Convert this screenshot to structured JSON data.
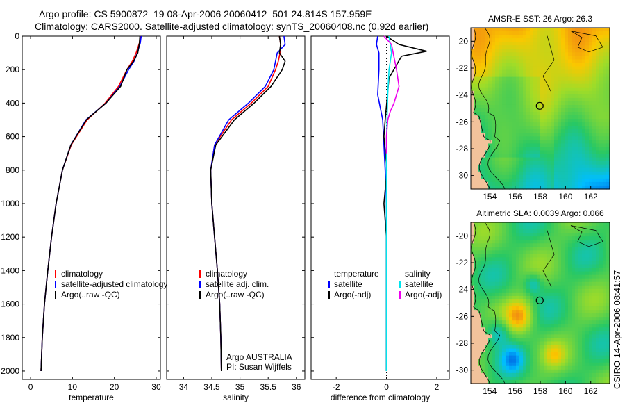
{
  "header": {
    "line1": "Argo profile: CS 5900872_19 08-Apr-2006 20060412_501 24.814S 157.959E",
    "line2": "Climatology: CARS2000. Satellite-adjusted climatology: synTS_20060408.nc (0.92d earlier)"
  },
  "side_label": "CSIRO 14-Apr-2006 08:41:57",
  "colors": {
    "climatology": "#ff0000",
    "satellite": "#0000ff",
    "argo": "#000000",
    "sal_satellite": "#00e5ee",
    "sal_argo": "#ee00ee",
    "land": "#f2c29b"
  },
  "chart_data": [
    {
      "id": "temperature",
      "type": "line",
      "xlabel": "temperature",
      "ylabel": "",
      "xlim": [
        -2,
        31
      ],
      "ylim": [
        2050,
        0
      ],
      "y_reversed": true,
      "xticks": [
        0,
        10,
        20,
        30
      ],
      "yticks": [
        0,
        200,
        400,
        600,
        800,
        1000,
        1200,
        1400,
        1600,
        1800,
        2000
      ],
      "legend": [
        "climatology",
        "satellite-adjusted climatology",
        "Argo(..raw -QC)"
      ],
      "legend_placement": "lower-right",
      "series": [
        {
          "name": "climatology",
          "color": "#ff0000",
          "x": [
            26.2,
            26.0,
            25.2,
            24.3,
            23.0,
            21.0,
            17.8,
            13.5,
            9.7,
            7.6,
            6.1,
            5.0,
            4.1,
            3.3,
            2.8,
            2.5
          ],
          "y": [
            0,
            40,
            100,
            150,
            200,
            300,
            400,
            500,
            650,
            800,
            1000,
            1200,
            1400,
            1600,
            1800,
            2000
          ]
        },
        {
          "name": "satellite-adjusted climatology",
          "color": "#0000ff",
          "x": [
            26.4,
            26.2,
            25.5,
            24.7,
            23.4,
            21.3,
            18.0,
            13.2,
            9.6,
            7.6,
            6.1,
            5.0,
            4.1,
            3.3,
            2.8,
            2.5
          ],
          "y": [
            0,
            40,
            100,
            150,
            200,
            300,
            400,
            500,
            650,
            800,
            1000,
            1200,
            1400,
            1600,
            1800,
            2000
          ]
        },
        {
          "name": "Argo(..raw -QC)",
          "color": "#000000",
          "x": [
            26.1,
            26.0,
            25.6,
            24.6,
            23.0,
            21.5,
            18.0,
            13.3,
            9.6,
            7.6,
            6.1,
            5.0,
            4.1,
            3.3,
            2.8,
            2.5
          ],
          "y": [
            0,
            40,
            100,
            150,
            200,
            300,
            400,
            500,
            650,
            800,
            1000,
            1200,
            1400,
            1600,
            1800,
            2000
          ]
        }
      ]
    },
    {
      "id": "salinity",
      "type": "line",
      "xlabel": "salinity",
      "xlim": [
        33.7,
        36.15
      ],
      "ylim": [
        2050,
        0
      ],
      "y_reversed": true,
      "xticks": [
        34,
        34.5,
        35,
        35.5,
        36
      ],
      "legend": [
        "climatology",
        "satellite adj. clim.",
        "Argo(..raw -QC)"
      ],
      "legend_placement": "lower-right",
      "annotation": [
        "Argo AUSTRALIA",
        "PI: Susan Wijffels"
      ],
      "series": [
        {
          "name": "climatology",
          "color": "#ff0000",
          "x": [
            35.7,
            35.72,
            35.71,
            35.68,
            35.63,
            35.5,
            35.2,
            34.85,
            34.55,
            34.48,
            34.5,
            34.55,
            34.6,
            34.64,
            34.66,
            34.67
          ],
          "y": [
            0,
            50,
            100,
            150,
            200,
            300,
            400,
            500,
            650,
            800,
            1000,
            1200,
            1400,
            1600,
            1800,
            2000
          ]
        },
        {
          "name": "satellite adj. clim.",
          "color": "#0000ff",
          "x": [
            35.78,
            35.8,
            35.66,
            35.63,
            35.6,
            35.45,
            35.15,
            34.8,
            34.55,
            34.48,
            34.5,
            34.55,
            34.6,
            34.64,
            34.66,
            34.67
          ],
          "y": [
            0,
            50,
            100,
            150,
            200,
            300,
            400,
            500,
            650,
            800,
            1000,
            1200,
            1400,
            1600,
            1800,
            2000
          ]
        },
        {
          "name": "Argo(..raw -QC)",
          "color": "#000000",
          "x": [
            35.7,
            35.72,
            35.7,
            35.8,
            35.75,
            35.55,
            35.25,
            34.9,
            34.57,
            34.48,
            34.5,
            34.55,
            34.6,
            34.64,
            34.66,
            34.67
          ],
          "y": [
            0,
            50,
            100,
            150,
            200,
            300,
            400,
            500,
            650,
            800,
            1000,
            1200,
            1400,
            1600,
            1800,
            2000
          ]
        }
      ]
    },
    {
      "id": "difference",
      "type": "line",
      "xlabel": "difference from climatology",
      "xlim": [
        -3.0,
        2.5
      ],
      "ylim": [
        2050,
        0
      ],
      "y_reversed": true,
      "xticks": [
        -2,
        0,
        2
      ],
      "legend_temperature": [
        "temperature",
        "satellite",
        "Argo(-adj)"
      ],
      "legend_salinity": [
        "salinity",
        "satellite",
        "Argo(-adj)"
      ],
      "legend_placement": "lower",
      "series": [
        {
          "name": "temperature satellite",
          "color": "#0000ff",
          "x": [
            -0.35,
            -0.4,
            -0.3,
            -0.3,
            -0.35,
            -0.15,
            -0.1,
            -0.05,
            0.0,
            0.0,
            0.0,
            0.0,
            0.0,
            0.0
          ],
          "y": [
            0,
            50,
            100,
            200,
            350,
            500,
            650,
            800,
            1000,
            1200,
            1400,
            1600,
            1800,
            2000
          ]
        },
        {
          "name": "temperature Argo(-adj)",
          "color": "#000000",
          "x": [
            0.0,
            0.5,
            1.6,
            0.6,
            0.1,
            -0.05,
            -0.1,
            0.02,
            -0.1,
            0.0,
            0.0,
            0.0,
            0.0,
            0.0
          ],
          "y": [
            0,
            50,
            90,
            120,
            250,
            500,
            600,
            800,
            1000,
            1200,
            1400,
            1600,
            1800,
            2000
          ]
        },
        {
          "name": "salinity satellite",
          "color": "#00e5ee",
          "x": [
            0.1,
            0.15,
            0.2,
            0.1,
            0.05,
            0.02,
            0.0,
            0.0,
            0.0,
            0.0,
            0.0
          ],
          "y": [
            0,
            50,
            100,
            200,
            350,
            500,
            650,
            800,
            1000,
            1500,
            2000
          ]
        },
        {
          "name": "salinity Argo(-adj)",
          "color": "#ee00ee",
          "x": [
            -0.1,
            0.2,
            0.4,
            0.5,
            0.3,
            0.15,
            0.05,
            0.0,
            0.0
          ],
          "y": [
            0,
            50,
            200,
            300,
            400,
            450,
            500,
            600,
            700
          ]
        }
      ]
    },
    {
      "id": "sst_map",
      "type": "heatmap",
      "title": "AMSR-E SST: 26  Argo: 26.3",
      "xlim": [
        152.5,
        163.5
      ],
      "ylim": [
        -31.0,
        -19.0
      ],
      "xticks": [
        154,
        156,
        158,
        160,
        162
      ],
      "yticks": [
        -20,
        -22,
        -24,
        -26,
        -28,
        -30
      ],
      "marker": {
        "lon": 157.96,
        "lat": -24.81
      }
    },
    {
      "id": "sla_map",
      "type": "heatmap",
      "title": "Altimetric SLA: 0.0039  Argo: 0.066",
      "xlim": [
        152.5,
        163.5
      ],
      "ylim": [
        -31.0,
        -19.0
      ],
      "xticks": [
        154,
        156,
        158,
        160,
        162
      ],
      "yticks": [
        -20,
        -22,
        -24,
        -26,
        -28,
        -30
      ],
      "marker": {
        "lon": 157.96,
        "lat": -24.81
      }
    }
  ]
}
